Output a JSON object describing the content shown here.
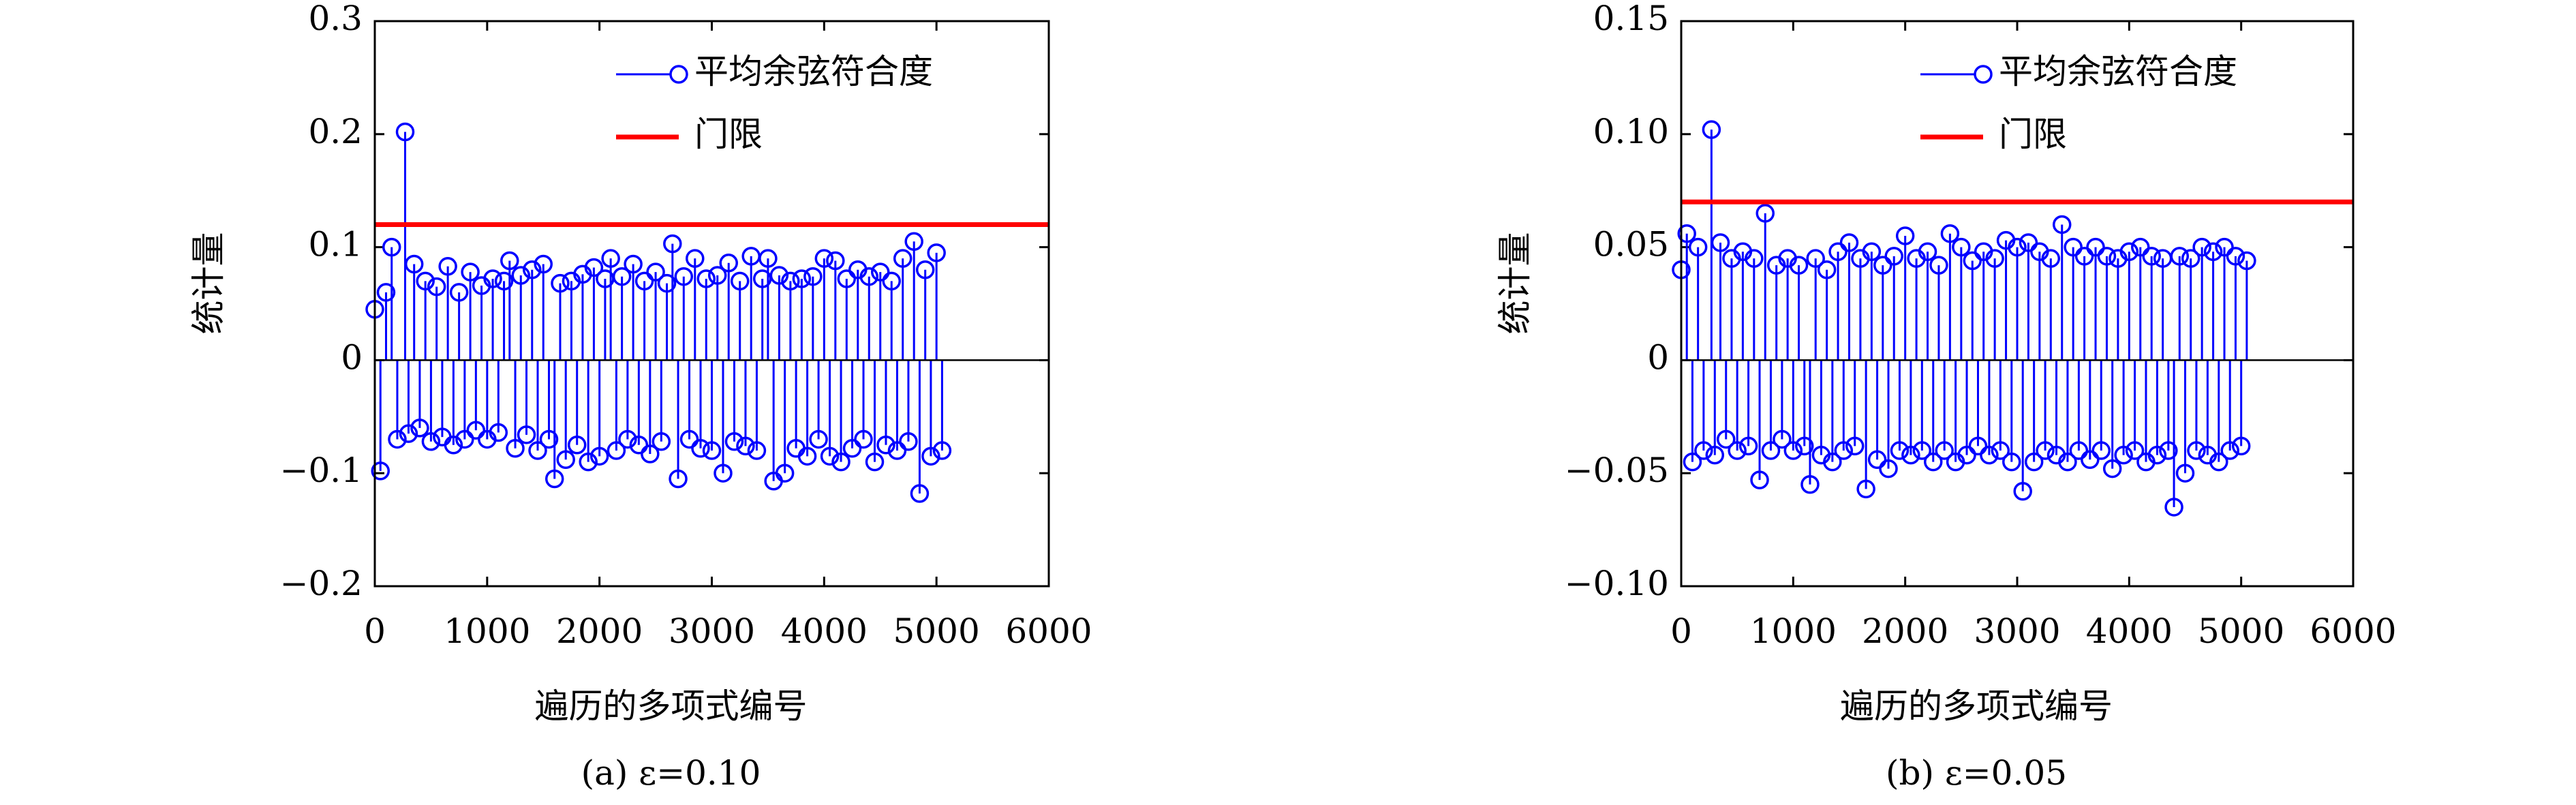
{
  "chart_data": [
    {
      "type": "stem",
      "caption": "(a) ε=0.10",
      "xlabel": "遍历的多项式编号",
      "ylabel": "统计量",
      "x": [
        0,
        50,
        100,
        150,
        200,
        270,
        300,
        350,
        400,
        450,
        500,
        550,
        600,
        650,
        700,
        750,
        800,
        850,
        900,
        950,
        1000,
        1050,
        1100,
        1150,
        1200,
        1250,
        1300,
        1350,
        1400,
        1450,
        1500,
        1550,
        1600,
        1650,
        1700,
        1750,
        1800,
        1850,
        1900,
        1950,
        2000,
        2050,
        2100,
        2150,
        2200,
        2250,
        2300,
        2350,
        2400,
        2450,
        2500,
        2550,
        2600,
        2650,
        2700,
        2750,
        2800,
        2850,
        2900,
        2950,
        3000,
        3050,
        3100,
        3150,
        3200,
        3250,
        3300,
        3350,
        3400,
        3450,
        3500,
        3550,
        3600,
        3650,
        3700,
        3750,
        3800,
        3850,
        3900,
        3950,
        4000,
        4050,
        4100,
        4150,
        4200,
        4250,
        4300,
        4350,
        4400,
        4450,
        4500,
        4550,
        4600,
        4650,
        4700,
        4750,
        4800,
        4850,
        4900,
        4950,
        5000,
        5050
      ],
      "series": [
        {
          "name": "平均余弦符合度",
          "color": "#0000ff",
          "values": [
            0.045,
            -0.098,
            0.06,
            0.1,
            -0.07,
            0.202,
            -0.065,
            0.085,
            -0.06,
            0.07,
            -0.072,
            0.065,
            -0.068,
            0.083,
            -0.075,
            0.06,
            -0.07,
            0.078,
            -0.062,
            0.066,
            -0.07,
            0.072,
            -0.064,
            0.07,
            0.088,
            -0.078,
            0.075,
            -0.066,
            0.08,
            -0.08,
            0.085,
            -0.07,
            -0.105,
            0.068,
            -0.088,
            0.07,
            -0.075,
            0.076,
            -0.09,
            0.082,
            -0.085,
            0.072,
            0.09,
            -0.08,
            0.074,
            -0.07,
            0.085,
            -0.075,
            0.07,
            -0.083,
            0.078,
            -0.072,
            0.068,
            0.103,
            -0.105,
            0.074,
            -0.07,
            0.09,
            -0.078,
            0.072,
            -0.08,
            0.075,
            -0.1,
            0.086,
            -0.072,
            0.07,
            -0.076,
            0.092,
            -0.08,
            0.072,
            0.09,
            -0.107,
            0.075,
            -0.1,
            0.07,
            -0.078,
            0.072,
            -0.085,
            0.074,
            -0.07,
            0.09,
            -0.085,
            0.088,
            -0.09,
            0.072,
            -0.078,
            0.08,
            -0.07,
            0.074,
            -0.09,
            0.078,
            -0.075,
            0.07,
            -0.08,
            0.09,
            -0.072,
            0.105,
            -0.118,
            0.08,
            -0.085,
            0.095,
            -0.08
          ]
        }
      ],
      "threshold": {
        "name": "门限",
        "value": 0.12,
        "color": "#ff0000"
      },
      "xlim": [
        0,
        6000
      ],
      "xticks": [
        0,
        1000,
        2000,
        3000,
        4000,
        5000,
        6000
      ],
      "ylim": [
        -0.2,
        0.3
      ],
      "yticks": [
        {
          "value": -0.2,
          "label": "−0.2"
        },
        {
          "value": -0.1,
          "label": "−0.1"
        },
        0,
        0.1,
        0.2,
        0.3
      ],
      "legend": "upper right"
    },
    {
      "type": "stem",
      "caption": "(b) ε=0.05",
      "xlabel": "遍历的多项式编号",
      "ylabel": "统计量",
      "x": [
        0,
        50,
        100,
        150,
        200,
        270,
        300,
        350,
        400,
        450,
        500,
        550,
        600,
        650,
        700,
        750,
        800,
        850,
        900,
        950,
        1000,
        1050,
        1100,
        1150,
        1200,
        1250,
        1300,
        1350,
        1400,
        1450,
        1500,
        1550,
        1600,
        1650,
        1700,
        1750,
        1800,
        1850,
        1900,
        1950,
        2000,
        2050,
        2100,
        2150,
        2200,
        2250,
        2300,
        2350,
        2400,
        2450,
        2500,
        2550,
        2600,
        2650,
        2700,
        2750,
        2800,
        2850,
        2900,
        2950,
        3000,
        3050,
        3100,
        3150,
        3200,
        3250,
        3300,
        3350,
        3400,
        3450,
        3500,
        3550,
        3600,
        3650,
        3700,
        3750,
        3800,
        3850,
        3900,
        3950,
        4000,
        4050,
        4100,
        4150,
        4200,
        4250,
        4300,
        4350,
        4400,
        4450,
        4500,
        4550,
        4600,
        4650,
        4700,
        4750,
        4800,
        4850,
        4900,
        4950,
        5000,
        5050
      ],
      "series": [
        {
          "name": "平均余弦符合度",
          "color": "#0000ff",
          "values": [
            0.04,
            0.056,
            -0.045,
            0.05,
            -0.04,
            0.102,
            -0.042,
            0.052,
            -0.035,
            0.045,
            -0.04,
            0.048,
            -0.038,
            0.045,
            -0.053,
            0.065,
            -0.04,
            0.042,
            -0.035,
            0.045,
            -0.04,
            0.042,
            -0.038,
            -0.055,
            0.045,
            -0.042,
            0.04,
            -0.045,
            0.048,
            -0.04,
            0.052,
            -0.038,
            0.045,
            -0.057,
            0.048,
            -0.044,
            0.042,
            -0.048,
            0.046,
            -0.04,
            0.055,
            -0.042,
            0.045,
            -0.04,
            0.048,
            -0.045,
            0.042,
            -0.04,
            0.056,
            -0.045,
            0.05,
            -0.042,
            0.044,
            -0.038,
            0.048,
            -0.042,
            0.045,
            -0.04,
            0.053,
            -0.045,
            0.05,
            -0.058,
            0.052,
            -0.045,
            0.048,
            -0.04,
            0.045,
            -0.042,
            0.06,
            -0.045,
            0.05,
            -0.04,
            0.046,
            -0.044,
            0.05,
            -0.04,
            0.046,
            -0.048,
            0.045,
            -0.042,
            0.048,
            -0.04,
            0.05,
            -0.045,
            0.046,
            -0.042,
            0.045,
            -0.04,
            -0.065,
            0.046,
            -0.05,
            0.045,
            -0.04,
            0.05,
            -0.042,
            0.048,
            -0.045,
            0.05,
            -0.04,
            0.046,
            -0.038,
            0.044
          ]
        }
      ],
      "threshold": {
        "name": "门限",
        "value": 0.07,
        "color": "#ff0000"
      },
      "xlim": [
        0,
        6000
      ],
      "xticks": [
        0,
        1000,
        2000,
        3000,
        4000,
        5000,
        6000
      ],
      "ylim": [
        -0.1,
        0.15
      ],
      "yticks": [
        {
          "value": -0.1,
          "label": "−0.10"
        },
        {
          "value": -0.05,
          "label": "−0.05"
        },
        0,
        0.05,
        {
          "value": 0.1,
          "label": "0.10"
        },
        0.15
      ],
      "legend": "upper right"
    }
  ]
}
